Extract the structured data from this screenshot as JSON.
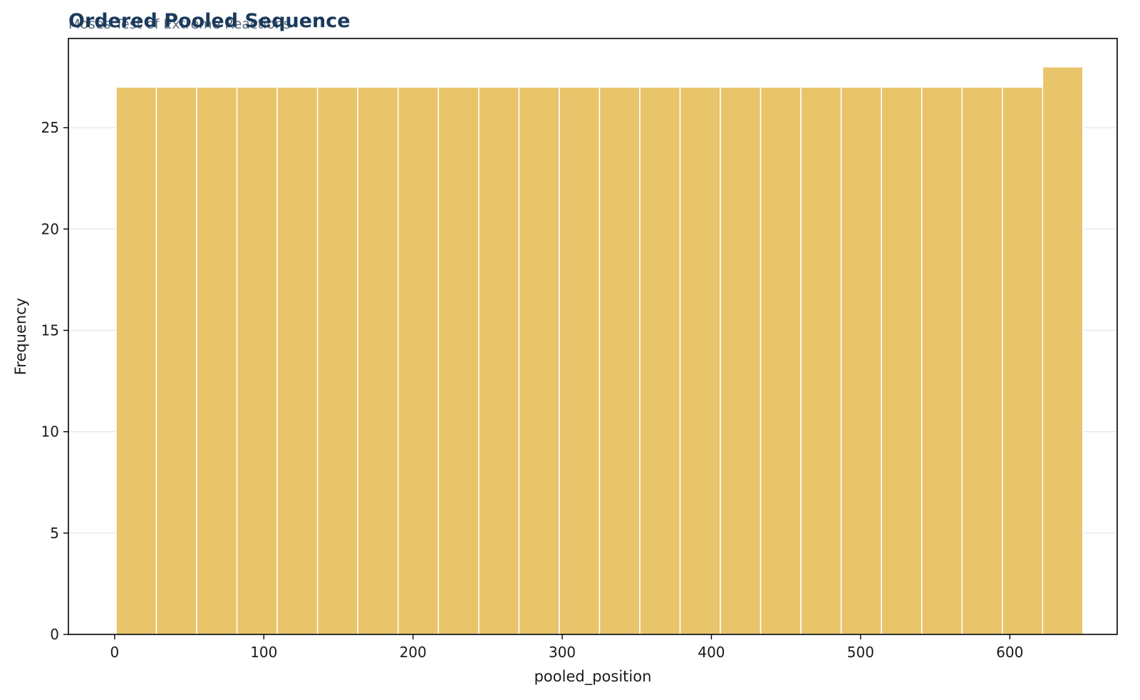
{
  "chart_data": {
    "type": "bar",
    "title": "Ordered Pooled Sequence",
    "subtitle": "Moses Test of Extreme Reactions",
    "xlabel": "pooled_position",
    "ylabel": "Frequency",
    "bin_edges": [
      1,
      28,
      55,
      82,
      109,
      136,
      163,
      190,
      217,
      244,
      271,
      298,
      325,
      352,
      379,
      406,
      433,
      460,
      487,
      514,
      541,
      568,
      595,
      622,
      649
    ],
    "values": [
      27,
      27,
      27,
      27,
      27,
      27,
      27,
      27,
      27,
      27,
      27,
      27,
      27,
      27,
      27,
      27,
      27,
      27,
      27,
      27,
      27,
      27,
      27,
      28
    ],
    "xlim": [
      -31,
      672
    ],
    "ylim": [
      0,
      29.4
    ],
    "x_ticks": [
      0,
      100,
      200,
      300,
      400,
      500,
      600
    ],
    "y_ticks": [
      0,
      5,
      10,
      15,
      20,
      25
    ],
    "grid": "y",
    "bar_color": "#e8c46b",
    "bar_edge_color": "#ffffff",
    "title_color": "#1b3a5c",
    "subtitle_color": "#5a6b7d"
  }
}
